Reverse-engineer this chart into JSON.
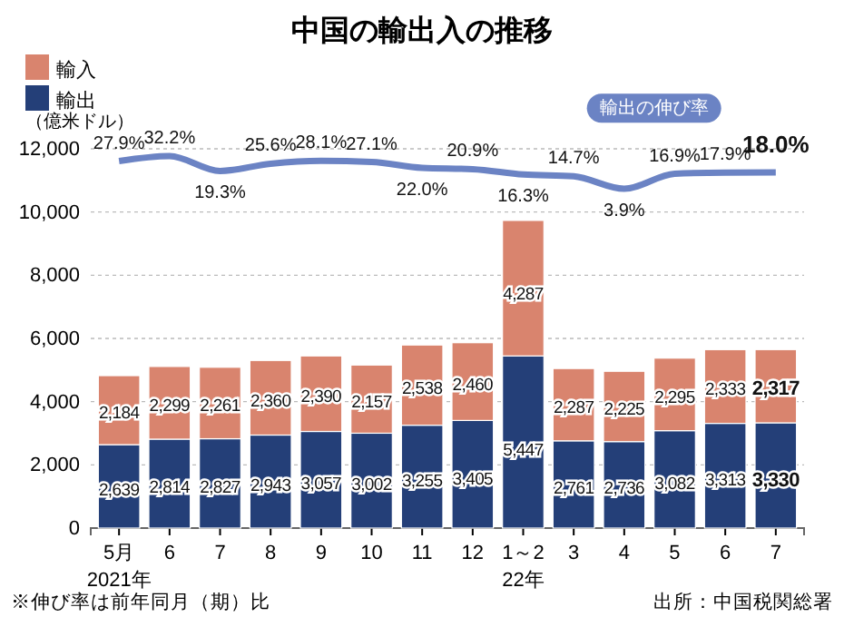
{
  "chart_data": {
    "type": "bar",
    "title": "中国の輸出入の推移",
    "ylabel": "（億米ドル）",
    "stacked": true,
    "categories": [
      "5月",
      "6",
      "7",
      "8",
      "9",
      "10",
      "11",
      "12",
      "1～2",
      "3",
      "4",
      "5",
      "6",
      "7"
    ],
    "series": [
      {
        "name": "輸出",
        "color": "#243f78",
        "values": [
          2639,
          2814,
          2827,
          2943,
          3057,
          3002,
          3255,
          3405,
          5447,
          2761,
          2736,
          3082,
          3313,
          3330
        ],
        "value_labels": [
          "2,639",
          "2,814",
          "2,827",
          "2,943",
          "3,057",
          "3,002",
          "3,255",
          "3,405",
          "5,447",
          "2,761",
          "2,736",
          "3,082",
          "3,313",
          "3,330"
        ]
      },
      {
        "name": "輸入",
        "color": "#d9846e",
        "values": [
          2184,
          2299,
          2261,
          2360,
          2390,
          2157,
          2538,
          2460,
          4287,
          2287,
          2225,
          2295,
          2333,
          2317
        ],
        "value_labels": [
          "2,184",
          "2,299",
          "2,261",
          "2,360",
          "2,390",
          "2,157",
          "2,538",
          "2,460",
          "4,287",
          "2,287",
          "2,225",
          "2,295",
          "2,333",
          "2,317"
        ]
      },
      {
        "name": "輸出の伸び率",
        "type": "line",
        "axis": "y2",
        "color": "#6b83c4",
        "values": [
          27.9,
          32.2,
          19.3,
          25.6,
          28.1,
          27.1,
          22.0,
          20.9,
          16.3,
          14.7,
          3.9,
          16.9,
          17.9,
          18.0
        ],
        "value_labels": [
          "27.9%",
          "32.2%",
          "19.3%",
          "25.6%",
          "28.1%",
          "27.1%",
          "22.0%",
          "20.9%",
          "16.3%",
          "14.7%",
          "3.9%",
          "16.9%",
          "17.9%",
          "18.0%"
        ]
      }
    ],
    "ylim": [
      0,
      12000
    ],
    "yticks": [
      {
        "value": 0,
        "label": "0"
      },
      {
        "value": 2000,
        "label": "2,000"
      },
      {
        "value": 4000,
        "label": "4,000"
      },
      {
        "value": 6000,
        "label": "6,000"
      },
      {
        "value": 8000,
        "label": "8,000"
      },
      {
        "value": 10000,
        "label": "10,000"
      },
      {
        "value": 12000,
        "label": "12,000"
      }
    ],
    "y2lim": [
      -290,
      38.5
    ],
    "grid": "y",
    "legend": "top left",
    "line_style": "solid",
    "annotations": [
      "2021年",
      "22年",
      "※伸び率は前年同月（期）比",
      "出所：中国税関総署"
    ]
  }
}
